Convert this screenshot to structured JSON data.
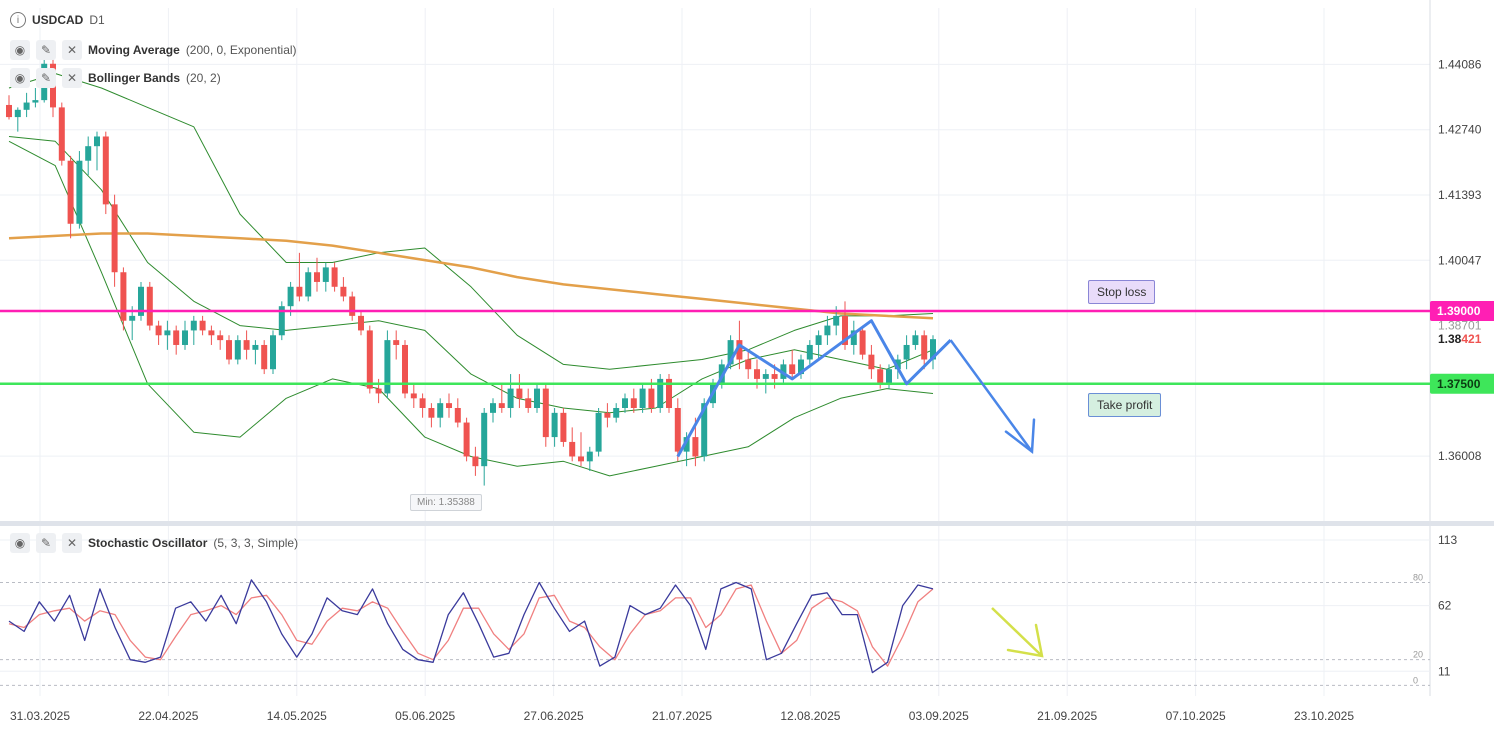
{
  "symbol": "USDCAD",
  "timeframe": "D1",
  "indicators": [
    {
      "name": "Moving Average",
      "params": "(200, 0, Exponential)"
    },
    {
      "name": "Bollinger Bands",
      "params": "(20, 2)"
    }
  ],
  "oscillator": {
    "name": "Stochastic Oscillator",
    "params": "(5, 3, 3, Simple)"
  },
  "icons": [
    "info-icon",
    "eye-icon",
    "wrench-icon",
    "close-icon"
  ],
  "annotations": {
    "stop_loss": {
      "label": "Stop loss",
      "price": 1.39,
      "price_label": "1.39000"
    },
    "take_profit": {
      "label": "Take profit",
      "price": 1.375,
      "price_label": "1.37500"
    },
    "current_price": {
      "prefix": "1.38",
      "suffix": "421"
    },
    "min_label": "Min: 1.35388",
    "hidden_price": "1.38701"
  },
  "colors": {
    "bull": "#26a69a",
    "bear": "#ef5350",
    "ma": "#e3a04a",
    "bands": "#2e8b2e",
    "stop_loss": "#ff1fb4",
    "take_profit": "#3ee65a",
    "pattern": "#4a86e8",
    "stoch_k": "#3a3a9c",
    "stoch_d": "#f08080",
    "forecast_arrow_osc": "#d4e04a"
  },
  "chart_data": {
    "type": "candlestick",
    "price_axis": {
      "ticks": [
        "1.44086",
        "1.42740",
        "1.41393",
        "1.40047",
        "1.36008"
      ],
      "range": [
        1.3469,
        1.4525
      ]
    },
    "x_labels": [
      "31.03.2025",
      "22.04.2025",
      "14.05.2025",
      "05.06.2025",
      "27.06.2025",
      "21.07.2025",
      "12.08.2025",
      "03.09.2025",
      "21.09.2025",
      "07.10.2025",
      "23.10.2025"
    ],
    "candles": [
      [
        1.4325,
        1.4345,
        1.4295,
        1.43
      ],
      [
        1.43,
        1.432,
        1.427,
        1.4315
      ],
      [
        1.4315,
        1.435,
        1.43,
        1.433
      ],
      [
        1.433,
        1.436,
        1.432,
        1.4335
      ],
      [
        1.4335,
        1.442,
        1.433,
        1.441
      ],
      [
        1.441,
        1.442,
        1.43,
        1.432
      ],
      [
        1.432,
        1.433,
        1.42,
        1.421
      ],
      [
        1.421,
        1.422,
        1.405,
        1.408
      ],
      [
        1.408,
        1.423,
        1.407,
        1.421
      ],
      [
        1.421,
        1.426,
        1.418,
        1.424
      ],
      [
        1.424,
        1.427,
        1.419,
        1.426
      ],
      [
        1.426,
        1.427,
        1.41,
        1.412
      ],
      [
        1.412,
        1.414,
        1.395,
        1.398
      ],
      [
        1.398,
        1.399,
        1.386,
        1.388
      ],
      [
        1.388,
        1.391,
        1.384,
        1.389
      ],
      [
        1.389,
        1.396,
        1.388,
        1.395
      ],
      [
        1.395,
        1.396,
        1.386,
        1.387
      ],
      [
        1.387,
        1.388,
        1.383,
        1.385
      ],
      [
        1.385,
        1.388,
        1.382,
        1.386
      ],
      [
        1.386,
        1.387,
        1.381,
        1.383
      ],
      [
        1.383,
        1.388,
        1.382,
        1.386
      ],
      [
        1.386,
        1.389,
        1.383,
        1.388
      ],
      [
        1.388,
        1.389,
        1.385,
        1.386
      ],
      [
        1.386,
        1.387,
        1.383,
        1.385
      ],
      [
        1.385,
        1.386,
        1.382,
        1.384
      ],
      [
        1.384,
        1.385,
        1.379,
        1.38
      ],
      [
        1.38,
        1.385,
        1.379,
        1.384
      ],
      [
        1.384,
        1.386,
        1.38,
        1.382
      ],
      [
        1.382,
        1.384,
        1.379,
        1.383
      ],
      [
        1.383,
        1.384,
        1.377,
        1.378
      ],
      [
        1.378,
        1.386,
        1.377,
        1.385
      ],
      [
        1.385,
        1.392,
        1.384,
        1.391
      ],
      [
        1.391,
        1.396,
        1.389,
        1.395
      ],
      [
        1.395,
        1.402,
        1.392,
        1.393
      ],
      [
        1.393,
        1.399,
        1.392,
        1.398
      ],
      [
        1.398,
        1.401,
        1.394,
        1.396
      ],
      [
        1.396,
        1.4,
        1.394,
        1.399
      ],
      [
        1.399,
        1.4,
        1.394,
        1.395
      ],
      [
        1.395,
        1.397,
        1.392,
        1.393
      ],
      [
        1.393,
        1.394,
        1.388,
        1.389
      ],
      [
        1.389,
        1.39,
        1.385,
        1.386
      ],
      [
        1.386,
        1.387,
        1.373,
        1.374
      ],
      [
        1.374,
        1.376,
        1.371,
        1.373
      ],
      [
        1.373,
        1.386,
        1.372,
        1.384
      ],
      [
        1.384,
        1.386,
        1.38,
        1.383
      ],
      [
        1.383,
        1.384,
        1.372,
        1.373
      ],
      [
        1.373,
        1.375,
        1.37,
        1.372
      ],
      [
        1.372,
        1.373,
        1.368,
        1.37
      ],
      [
        1.37,
        1.371,
        1.366,
        1.368
      ],
      [
        1.368,
        1.372,
        1.366,
        1.371
      ],
      [
        1.371,
        1.373,
        1.368,
        1.37
      ],
      [
        1.37,
        1.372,
        1.366,
        1.367
      ],
      [
        1.367,
        1.368,
        1.359,
        1.36
      ],
      [
        1.36,
        1.362,
        1.356,
        1.358
      ],
      [
        1.358,
        1.37,
        1.354,
        1.369
      ],
      [
        1.369,
        1.372,
        1.367,
        1.371
      ],
      [
        1.371,
        1.375,
        1.369,
        1.37
      ],
      [
        1.37,
        1.377,
        1.368,
        1.374
      ],
      [
        1.374,
        1.377,
        1.37,
        1.372
      ],
      [
        1.372,
        1.374,
        1.369,
        1.37
      ],
      [
        1.37,
        1.375,
        1.369,
        1.374
      ],
      [
        1.374,
        1.375,
        1.362,
        1.364
      ],
      [
        1.364,
        1.37,
        1.362,
        1.369
      ],
      [
        1.369,
        1.37,
        1.362,
        1.363
      ],
      [
        1.363,
        1.366,
        1.359,
        1.36
      ],
      [
        1.36,
        1.365,
        1.358,
        1.359
      ],
      [
        1.359,
        1.362,
        1.357,
        1.361
      ],
      [
        1.361,
        1.37,
        1.36,
        1.369
      ],
      [
        1.369,
        1.371,
        1.366,
        1.368
      ],
      [
        1.368,
        1.371,
        1.367,
        1.37
      ],
      [
        1.37,
        1.373,
        1.369,
        1.372
      ],
      [
        1.372,
        1.374,
        1.369,
        1.37
      ],
      [
        1.37,
        1.375,
        1.369,
        1.374
      ],
      [
        1.374,
        1.376,
        1.369,
        1.37
      ],
      [
        1.37,
        1.377,
        1.369,
        1.376
      ],
      [
        1.376,
        1.377,
        1.369,
        1.37
      ],
      [
        1.37,
        1.372,
        1.359,
        1.361
      ],
      [
        1.361,
        1.365,
        1.358,
        1.364
      ],
      [
        1.364,
        1.368,
        1.358,
        1.36
      ],
      [
        1.36,
        1.372,
        1.359,
        1.371
      ],
      [
        1.371,
        1.376,
        1.37,
        1.375
      ],
      [
        1.375,
        1.38,
        1.374,
        1.379
      ],
      [
        1.379,
        1.385,
        1.378,
        1.384
      ],
      [
        1.384,
        1.388,
        1.378,
        1.38
      ],
      [
        1.38,
        1.382,
        1.376,
        1.378
      ],
      [
        1.378,
        1.38,
        1.374,
        1.376
      ],
      [
        1.376,
        1.378,
        1.373,
        1.377
      ],
      [
        1.377,
        1.379,
        1.374,
        1.376
      ],
      [
        1.376,
        1.38,
        1.375,
        1.379
      ],
      [
        1.379,
        1.382,
        1.376,
        1.377
      ],
      [
        1.377,
        1.381,
        1.376,
        1.38
      ],
      [
        1.38,
        1.384,
        1.379,
        1.383
      ],
      [
        1.383,
        1.386,
        1.38,
        1.385
      ],
      [
        1.385,
        1.389,
        1.383,
        1.387
      ],
      [
        1.387,
        1.391,
        1.385,
        1.389
      ],
      [
        1.389,
        1.392,
        1.382,
        1.383
      ],
      [
        1.383,
        1.388,
        1.381,
        1.386
      ],
      [
        1.386,
        1.387,
        1.38,
        1.381
      ],
      [
        1.381,
        1.383,
        1.376,
        1.378
      ],
      [
        1.378,
        1.379,
        1.374,
        1.375
      ],
      [
        1.375,
        1.379,
        1.374,
        1.378
      ],
      [
        1.378,
        1.381,
        1.376,
        1.38
      ],
      [
        1.38,
        1.385,
        1.378,
        1.383
      ],
      [
        1.383,
        1.386,
        1.382,
        1.385
      ],
      [
        1.385,
        1.386,
        1.378,
        1.38
      ],
      [
        1.38,
        1.385,
        1.378,
        1.3842
      ]
    ],
    "ma200": [
      1.405,
      1.4055,
      1.406,
      1.406,
      1.4055,
      1.405,
      1.4045,
      1.4035,
      1.402,
      1.4005,
      1.399,
      1.397,
      1.3955,
      1.3945,
      1.3935,
      1.3925,
      1.3915,
      1.3905,
      1.3895,
      1.389,
      1.3885
    ],
    "bb_upper": [
      1.436,
      1.439,
      1.436,
      1.432,
      1.428,
      1.41,
      1.4,
      1.4,
      1.402,
      1.403,
      1.395,
      1.385,
      1.379,
      1.378,
      1.379,
      1.38,
      1.382,
      1.386,
      1.389,
      1.389,
      1.3895
    ],
    "bb_mid": [
      1.426,
      1.425,
      1.415,
      1.4,
      1.392,
      1.387,
      1.386,
      1.387,
      1.388,
      1.386,
      1.377,
      1.372,
      1.37,
      1.369,
      1.37,
      1.376,
      1.38,
      1.382,
      1.38,
      1.378,
      1.382
    ],
    "bb_lower": [
      1.425,
      1.42,
      1.398,
      1.375,
      1.365,
      1.364,
      1.372,
      1.376,
      1.374,
      1.364,
      1.36,
      1.358,
      1.359,
      1.356,
      1.358,
      1.36,
      1.362,
      1.368,
      1.372,
      1.374,
      1.373
    ],
    "pattern_points": [
      [
        1.36
      ],
      [
        1.383
      ],
      [
        1.376
      ],
      [
        1.388
      ],
      [
        1.375
      ],
      [
        1.384
      ]
    ],
    "forecast_target": 1.361,
    "stochastic": {
      "axis_ticks": [
        "113",
        "62",
        "11"
      ],
      "levels": [
        80,
        20,
        0
      ],
      "level_labels": [
        "80",
        "20",
        "0"
      ],
      "k": [
        50,
        42,
        65,
        50,
        70,
        35,
        75,
        45,
        20,
        18,
        22,
        60,
        65,
        50,
        70,
        48,
        82,
        65,
        40,
        22,
        40,
        68,
        58,
        55,
        75,
        48,
        28,
        20,
        18,
        55,
        72,
        48,
        22,
        25,
        55,
        80,
        60,
        42,
        50,
        15,
        22,
        62,
        55,
        60,
        78,
        62,
        28,
        75,
        80,
        75,
        20,
        25,
        48,
        70,
        72,
        55,
        55,
        10,
        18,
        62,
        78,
        75
      ],
      "d": [
        48,
        45,
        55,
        58,
        60,
        50,
        58,
        55,
        35,
        22,
        20,
        38,
        55,
        58,
        62,
        55,
        68,
        70,
        55,
        35,
        32,
        50,
        60,
        58,
        65,
        60,
        42,
        25,
        20,
        35,
        60,
        60,
        40,
        28,
        40,
        68,
        70,
        50,
        45,
        30,
        20,
        40,
        55,
        58,
        68,
        68,
        45,
        55,
        75,
        78,
        50,
        25,
        35,
        60,
        68,
        65,
        58,
        30,
        15,
        38,
        65,
        75
      ]
    }
  }
}
